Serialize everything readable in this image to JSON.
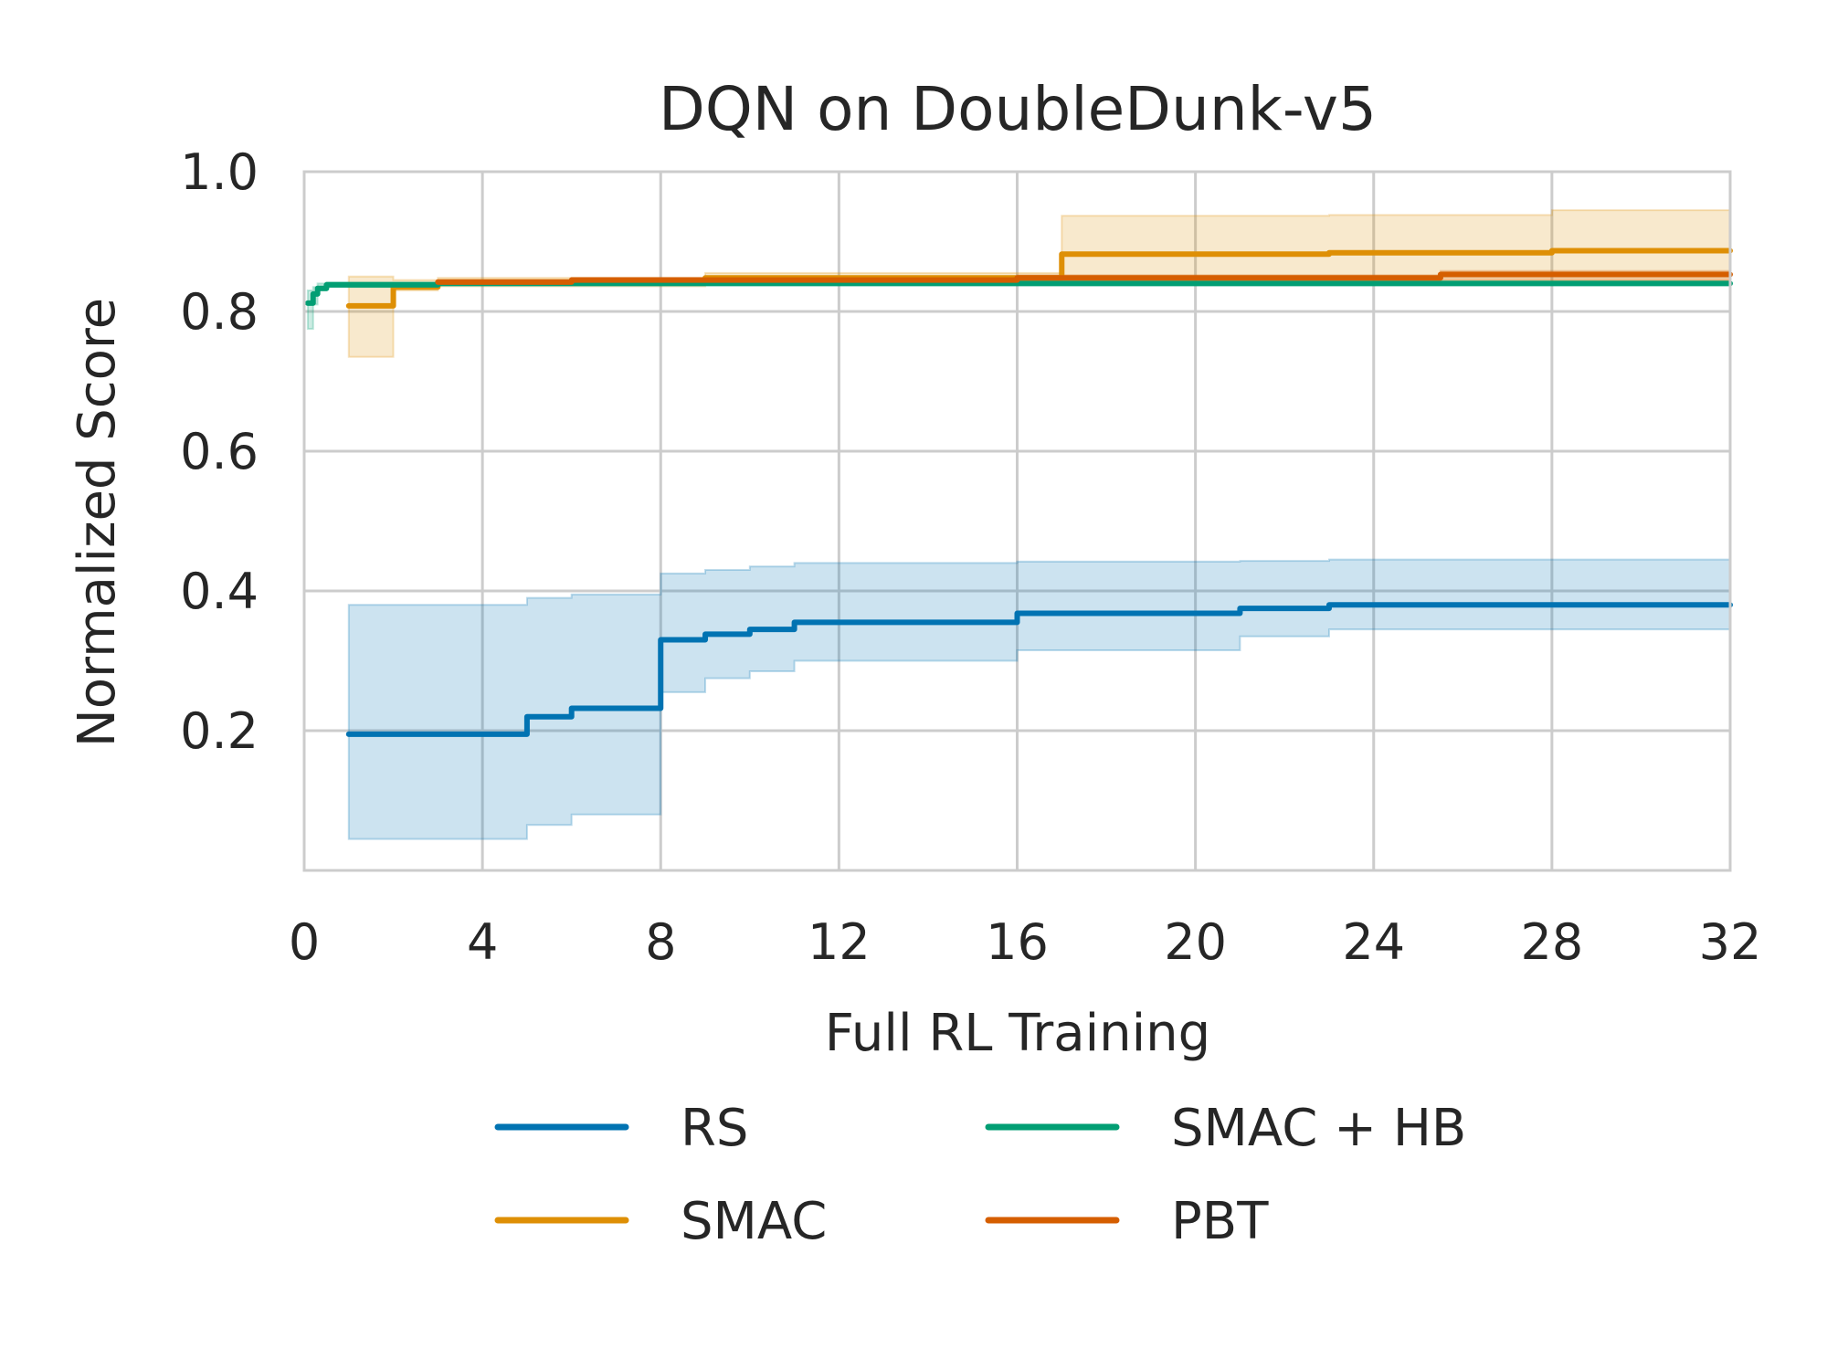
{
  "chart_data": {
    "type": "line",
    "title": "DQN on DoubleDunk-v5",
    "xlabel": "Full RL Training",
    "ylabel": "Normalized Score",
    "xlim": [
      0,
      32
    ],
    "ylim": [
      0.0,
      1.0
    ],
    "xticks": [
      0,
      4,
      8,
      12,
      16,
      20,
      24,
      28,
      32
    ],
    "yticks": [
      0.2,
      0.4,
      0.6,
      0.8,
      1.0
    ],
    "ytick_labels": [
      "0.2",
      "0.4",
      "0.6",
      "0.8",
      "1.0"
    ],
    "grid": true,
    "legend_position": "bottom",
    "series": [
      {
        "name": "RS",
        "color": "#0173b2",
        "x": [
          1,
          5,
          5,
          6,
          6,
          8,
          8,
          9,
          9,
          10,
          10,
          11,
          11,
          16,
          16,
          21,
          21,
          23,
          23,
          32
        ],
        "y": [
          0.195,
          0.195,
          0.22,
          0.22,
          0.232,
          0.232,
          0.33,
          0.33,
          0.338,
          0.338,
          0.345,
          0.345,
          0.355,
          0.355,
          0.368,
          0.368,
          0.375,
          0.375,
          0.38,
          0.38
        ],
        "lower": [
          0.045,
          0.045,
          0.065,
          0.065,
          0.08,
          0.08,
          0.255,
          0.255,
          0.275,
          0.275,
          0.285,
          0.285,
          0.3,
          0.3,
          0.315,
          0.315,
          0.335,
          0.335,
          0.345,
          0.345
        ],
        "upper": [
          0.38,
          0.38,
          0.39,
          0.39,
          0.395,
          0.395,
          0.425,
          0.425,
          0.43,
          0.43,
          0.435,
          0.435,
          0.44,
          0.44,
          0.442,
          0.442,
          0.443,
          0.443,
          0.445,
          0.445
        ]
      },
      {
        "name": "SMAC",
        "color": "#de8f05",
        "x": [
          1,
          2,
          2,
          3,
          3,
          9,
          9,
          17,
          17,
          23,
          23,
          28,
          28,
          32
        ],
        "y": [
          0.808,
          0.808,
          0.835,
          0.835,
          0.842,
          0.842,
          0.848,
          0.848,
          0.882,
          0.882,
          0.884,
          0.884,
          0.887,
          0.887
        ],
        "lower": [
          0.735,
          0.735,
          0.83,
          0.83,
          0.836,
          0.836,
          0.842,
          0.842,
          0.842,
          0.842,
          0.842,
          0.842,
          0.843,
          0.843
        ],
        "upper": [
          0.85,
          0.85,
          0.845,
          0.845,
          0.848,
          0.848,
          0.855,
          0.855,
          0.937,
          0.937,
          0.938,
          0.938,
          0.945,
          0.945
        ]
      },
      {
        "name": "SMAC + HB",
        "color": "#029e73",
        "x": [
          0.08,
          0.2,
          0.2,
          0.3,
          0.3,
          0.5,
          0.5,
          3,
          3,
          32
        ],
        "y": [
          0.812,
          0.812,
          0.825,
          0.825,
          0.833,
          0.833,
          0.838,
          0.838,
          0.84,
          0.84
        ],
        "lower": [
          0.775,
          0.775,
          0.81,
          0.81,
          0.83,
          0.83,
          0.835,
          0.835,
          0.838,
          0.838
        ],
        "upper": [
          0.83,
          0.83,
          0.835,
          0.835,
          0.84,
          0.84,
          0.842,
          0.842,
          0.843,
          0.843
        ]
      },
      {
        "name": "PBT",
        "color": "#d55e00",
        "x": [
          3,
          6,
          6,
          16,
          16,
          25.5,
          25.5,
          32
        ],
        "y": [
          0.842,
          0.842,
          0.845,
          0.845,
          0.848,
          0.848,
          0.853,
          0.853
        ],
        "lower": [
          0.84,
          0.84,
          0.842,
          0.842,
          0.843,
          0.843,
          0.845,
          0.845
        ],
        "upper": [
          0.845,
          0.845,
          0.848,
          0.848,
          0.852,
          0.852,
          0.858,
          0.858
        ]
      }
    ]
  }
}
